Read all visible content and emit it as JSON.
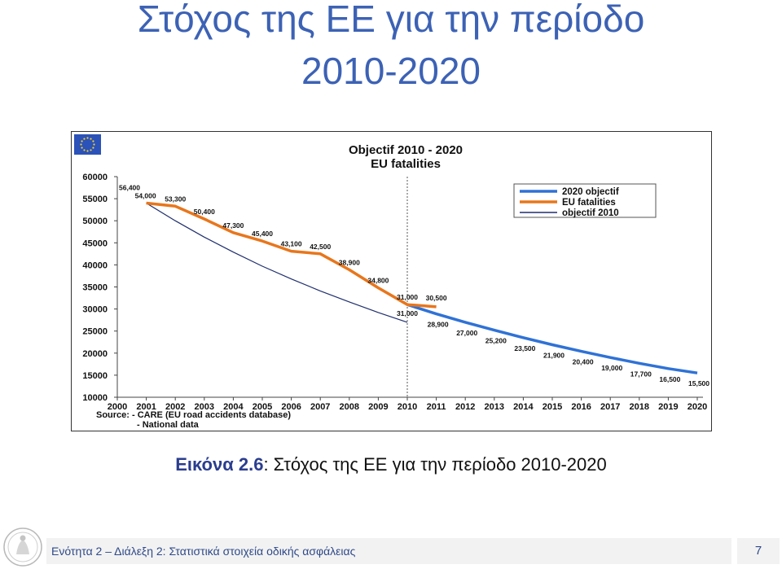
{
  "slide": {
    "title_line1": "Στόχος της ΕΕ για την περίοδο",
    "title_line2": "2010-2020"
  },
  "caption": {
    "label": "Εικόνα 2.6",
    "text": ": Στόχος της ΕΕ για την περίοδο 2010-2020"
  },
  "footer": {
    "text": "Ενότητα 2 – Διάλεξη 2: Στατιστικά στοιχεία οδικής ασφάλειας",
    "page_number": "7"
  },
  "colors": {
    "title": "#3c62b5",
    "eu_fatalities": "#e8761c",
    "objectif_2020": "#2f72d6",
    "objectif_2010": "#1f2f6e"
  },
  "chart_data": {
    "type": "line",
    "title_line1": "Objectif 2010 - 2020",
    "title_line2": "EU fatalities",
    "source_line1": "Source: - CARE (EU road accidents database)",
    "source_line2": "- National data",
    "x": [
      2000,
      2001,
      2002,
      2003,
      2004,
      2005,
      2006,
      2007,
      2008,
      2009,
      2010,
      2011,
      2012,
      2013,
      2014,
      2015,
      2016,
      2017,
      2018,
      2019,
      2020
    ],
    "x_tick_labels": [
      "2000",
      "2001",
      "2002",
      "2003",
      "2004",
      "2005",
      "2006",
      "2007",
      "2008",
      "2009",
      "2010",
      "2011",
      "2012",
      "2013",
      "2014",
      "2015",
      "2016",
      "2017",
      "2018",
      "2019",
      "2020"
    ],
    "y_ticks": [
      10000,
      15000,
      20000,
      25000,
      30000,
      35000,
      40000,
      45000,
      50000,
      55000,
      60000
    ],
    "y_tick_labels": [
      "10000",
      "15000",
      "20000",
      "25000",
      "30000",
      "35000",
      "40000",
      "45000",
      "50000",
      "55000",
      "60000"
    ],
    "ylim": [
      10000,
      60000
    ],
    "xlim": [
      2000,
      2020
    ],
    "grid": false,
    "legend_position": "top-right",
    "reference_line_x": 2010,
    "series": [
      {
        "name": "2020 objectif",
        "color": "#2f72d6",
        "points": [
          [
            2010,
            31000
          ],
          [
            2011,
            28900
          ],
          [
            2012,
            27000
          ],
          [
            2013,
            25200
          ],
          [
            2014,
            23500
          ],
          [
            2015,
            21900
          ],
          [
            2016,
            20400
          ],
          [
            2017,
            19000
          ],
          [
            2018,
            17700
          ],
          [
            2019,
            16500
          ],
          [
            2020,
            15500
          ]
        ],
        "labels": [
          "31,000",
          "28,900",
          "27,000",
          "25,200",
          "23,500",
          "21,900",
          "20,400",
          "19,000",
          "17,700",
          "16,500",
          "15,500"
        ]
      },
      {
        "name": "EU fatalities",
        "color": "#e8761c",
        "points": [
          [
            2001,
            54000
          ],
          [
            2002,
            53300
          ],
          [
            2003,
            50400
          ],
          [
            2004,
            47300
          ],
          [
            2005,
            45400
          ],
          [
            2006,
            43100
          ],
          [
            2007,
            42500
          ],
          [
            2008,
            38900
          ],
          [
            2009,
            34800
          ],
          [
            2010,
            31000
          ],
          [
            2011,
            30500
          ]
        ],
        "labels": [
          "54,000",
          "53,300",
          "50,400",
          "47,300",
          "45,400",
          "43,100",
          "42,500",
          "38,900",
          "34,800",
          "31,000",
          "30,500"
        ]
      },
      {
        "name": "objectif 2010",
        "color": "#1f2f6e",
        "points": [
          [
            2001,
            54000
          ],
          [
            2002,
            50000
          ],
          [
            2003,
            46300
          ],
          [
            2004,
            42900
          ],
          [
            2005,
            39700
          ],
          [
            2006,
            36800
          ],
          [
            2007,
            34100
          ],
          [
            2008,
            31600
          ],
          [
            2009,
            29200
          ],
          [
            2010,
            27000
          ]
        ]
      }
    ],
    "annotations": [
      {
        "text": "56,400",
        "x": 2000,
        "y": 56400
      }
    ]
  }
}
